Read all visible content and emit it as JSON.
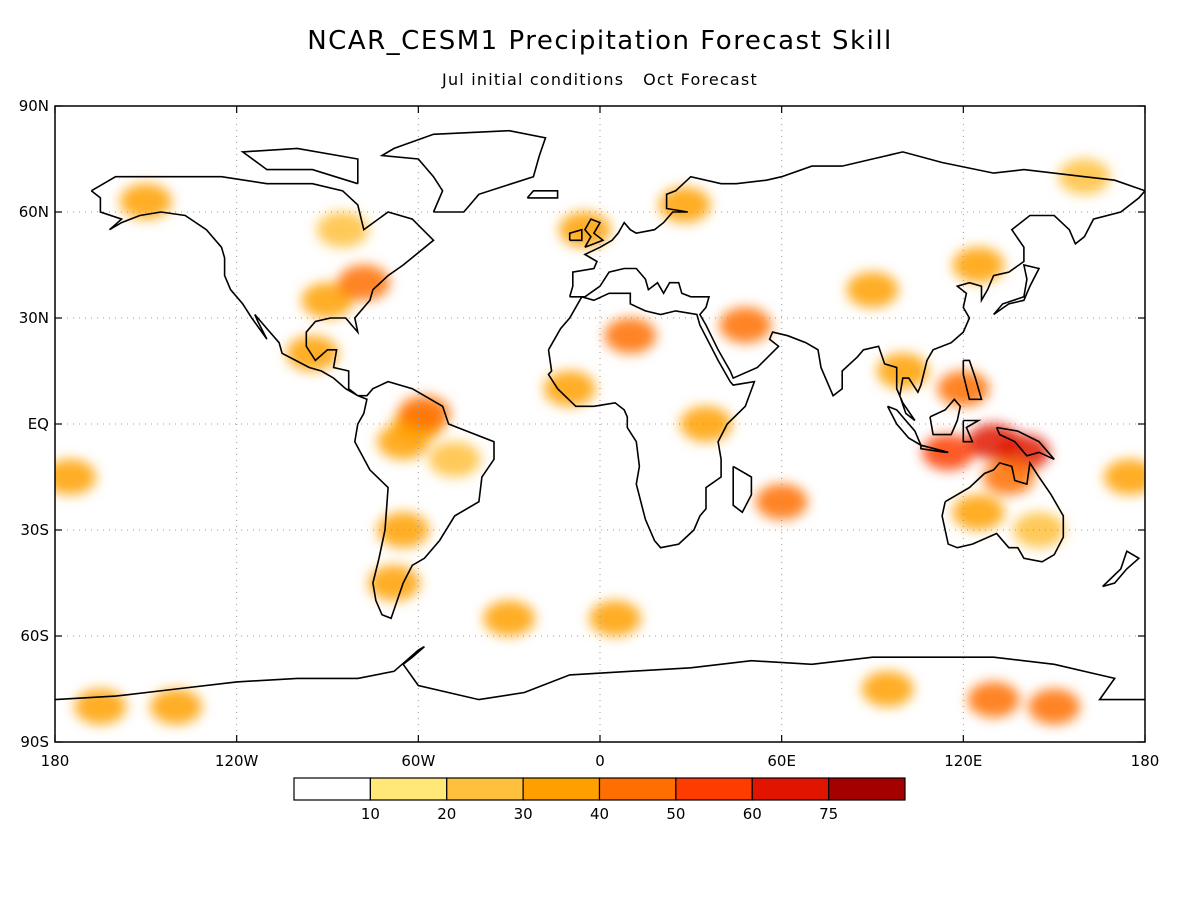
{
  "header": {
    "title": "NCAR_CESM1 Precipitation Forecast Skill",
    "subtitle": "Jul initial conditions   Oct Forecast"
  },
  "map": {
    "projection": "equirectangular",
    "lon_range": [
      -180,
      180
    ],
    "lat_range": [
      -90,
      90
    ],
    "grid": true,
    "lat_ticks": [
      {
        "value": 90,
        "label": "90N"
      },
      {
        "value": 60,
        "label": "60N"
      },
      {
        "value": 30,
        "label": "30N"
      },
      {
        "value": 0,
        "label": "EQ"
      },
      {
        "value": -30,
        "label": "30S"
      },
      {
        "value": -60,
        "label": "60S"
      },
      {
        "value": -90,
        "label": "90S"
      }
    ],
    "lon_ticks": [
      {
        "value": -180,
        "label": "180"
      },
      {
        "value": -120,
        "label": "120W"
      },
      {
        "value": -60,
        "label": "60W"
      },
      {
        "value": 0,
        "label": "0"
      },
      {
        "value": 60,
        "label": "60E"
      },
      {
        "value": 120,
        "label": "120E"
      },
      {
        "value": 180,
        "label": "180"
      }
    ],
    "coastline_color": "#000000",
    "grid_color": "#9a9a9a"
  },
  "skill_regions": [
    {
      "lon": -60,
      "lat": 0,
      "value": 35
    },
    {
      "lon": -58,
      "lat": 3,
      "value": 45
    },
    {
      "lon": -65,
      "lat": -5,
      "value": 30
    },
    {
      "lon": -48,
      "lat": -10,
      "value": 25
    },
    {
      "lon": -90,
      "lat": 35,
      "value": 30
    },
    {
      "lon": -78,
      "lat": 40,
      "value": 40
    },
    {
      "lon": -95,
      "lat": 20,
      "value": 35
    },
    {
      "lon": -150,
      "lat": 63,
      "value": 35
    },
    {
      "lon": -85,
      "lat": 55,
      "value": 25
    },
    {
      "lon": -65,
      "lat": -30,
      "value": 30
    },
    {
      "lon": -68,
      "lat": -45,
      "value": 30
    },
    {
      "lon": 10,
      "lat": 25,
      "value": 40
    },
    {
      "lon": -10,
      "lat": 10,
      "value": 35
    },
    {
      "lon": 35,
      "lat": 0,
      "value": 35
    },
    {
      "lon": 48,
      "lat": 28,
      "value": 40
    },
    {
      "lon": -5,
      "lat": 55,
      "value": 30
    },
    {
      "lon": 28,
      "lat": 62,
      "value": 30
    },
    {
      "lon": 90,
      "lat": 38,
      "value": 30
    },
    {
      "lon": 125,
      "lat": 45,
      "value": 35
    },
    {
      "lon": 100,
      "lat": 15,
      "value": 35
    },
    {
      "lon": 120,
      "lat": 10,
      "value": 40
    },
    {
      "lon": 115,
      "lat": -8,
      "value": 55
    },
    {
      "lon": 130,
      "lat": -5,
      "value": 60
    },
    {
      "lon": 140,
      "lat": -8,
      "value": 65
    },
    {
      "lon": 135,
      "lat": -15,
      "value": 45
    },
    {
      "lon": 125,
      "lat": -25,
      "value": 30
    },
    {
      "lon": 145,
      "lat": -30,
      "value": 25
    },
    {
      "lon": 60,
      "lat": -22,
      "value": 40
    },
    {
      "lon": -175,
      "lat": -15,
      "value": 35
    },
    {
      "lon": 175,
      "lat": -15,
      "value": 30
    },
    {
      "lon": -140,
      "lat": -80,
      "value": 35
    },
    {
      "lon": -165,
      "lat": -80,
      "value": 30
    },
    {
      "lon": 130,
      "lat": -78,
      "value": 45
    },
    {
      "lon": 95,
      "lat": -75,
      "value": 30
    },
    {
      "lon": 150,
      "lat": -80,
      "value": 40
    },
    {
      "lon": 160,
      "lat": 70,
      "value": 25
    },
    {
      "lon": -30,
      "lat": -55,
      "value": 30
    },
    {
      "lon": 5,
      "lat": -55,
      "value": 30
    }
  ],
  "colorbar": {
    "colors": [
      "#ffffff",
      "#ffe878",
      "#ffc03c",
      "#ffa000",
      "#ff6e00",
      "#ff3c00",
      "#e11400",
      "#a50000"
    ],
    "labels": [
      "10",
      "20",
      "30",
      "40",
      "50",
      "60",
      "75"
    ]
  }
}
